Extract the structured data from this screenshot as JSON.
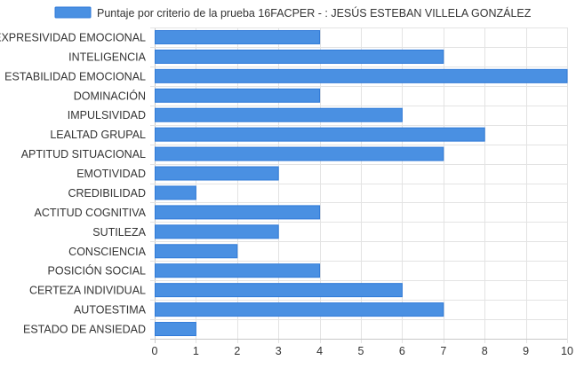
{
  "colors": {
    "bar_fill": "#4a90e2",
    "bar_stroke": "#2f7ad8",
    "grid": "#e3e3e3",
    "axis": "#c8c8c8",
    "text": "#333333"
  },
  "chart_data": {
    "type": "bar",
    "orientation": "horizontal",
    "title": "",
    "xlabel": "",
    "ylabel": "",
    "xlim": [
      0,
      10
    ],
    "ticks": [
      0,
      1,
      2,
      3,
      4,
      5,
      6,
      7,
      8,
      9,
      10
    ],
    "grid": true,
    "legend_position": "top",
    "categories": [
      "EXPRESIVIDAD EMOCIONAL",
      "INTELIGENCIA",
      "ESTABILIDAD EMOCIONAL",
      "DOMINACIÓN",
      "IMPULSIVIDAD",
      "LEALTAD GRUPAL",
      "APTITUD SITUACIONAL",
      "EMOTIVIDAD",
      "CREDIBILIDAD",
      "ACTITUD COGNITIVA",
      "SUTILEZA",
      "CONSCIENCIA",
      "POSICIÓN SOCIAL",
      "CERTEZA INDIVIDUAL",
      "AUTOESTIMA",
      "ESTADO DE ANSIEDAD"
    ],
    "series": [
      {
        "name": "Puntaje por criterio de la prueba 16FACPER - : JESÚS ESTEBAN VILLELA GONZÁLEZ",
        "values": [
          4,
          7,
          10,
          4,
          6,
          8,
          7,
          3,
          1,
          4,
          3,
          2,
          4,
          6,
          7,
          1
        ]
      }
    ]
  }
}
